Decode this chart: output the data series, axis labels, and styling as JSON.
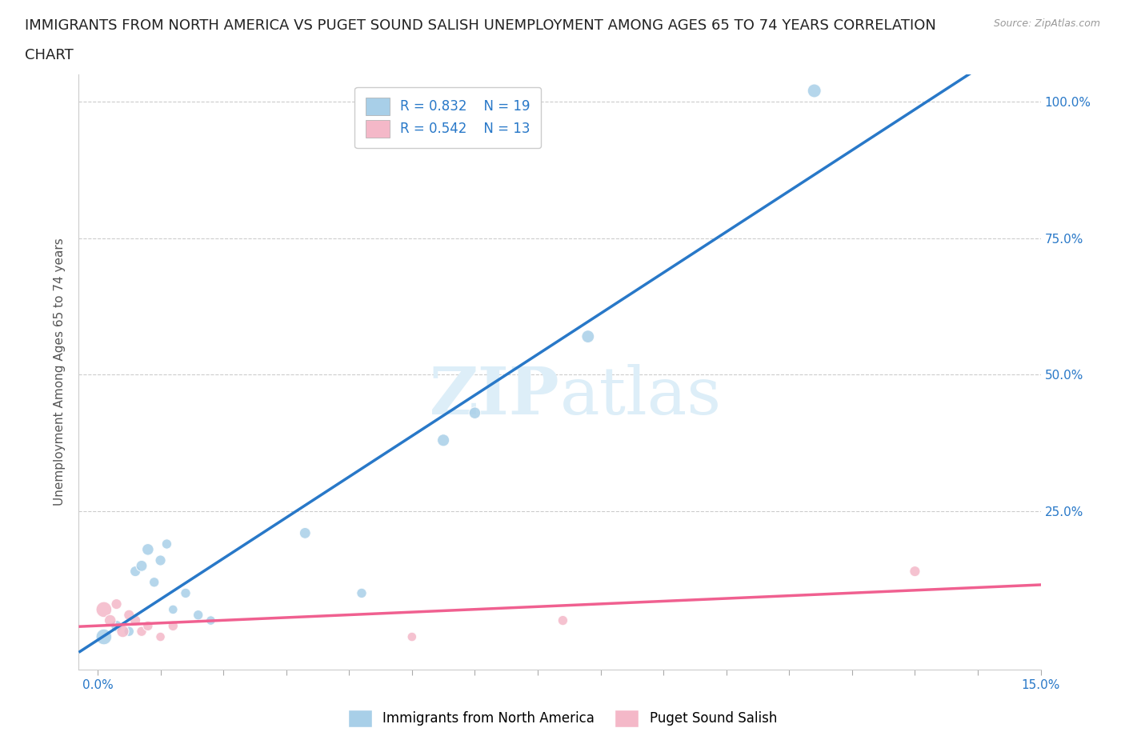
{
  "title_line1": "IMMIGRANTS FROM NORTH AMERICA VS PUGET SOUND SALISH UNEMPLOYMENT AMONG AGES 65 TO 74 YEARS CORRELATION",
  "title_line2": "CHART",
  "source": "Source: ZipAtlas.com",
  "ylabel": "Unemployment Among Ages 65 to 74 years",
  "xlabel_blue": "Immigrants from North America",
  "xlabel_pink": "Puget Sound Salish",
  "x_min": 0.0,
  "x_max": 0.15,
  "y_min": 0.0,
  "y_max": 1.05,
  "blue_R": 0.832,
  "blue_N": 19,
  "pink_R": 0.542,
  "pink_N": 13,
  "blue_color": "#a8cfe8",
  "pink_color": "#f4b8c8",
  "blue_line_color": "#2878c8",
  "pink_line_color": "#f06090",
  "watermark_color": "#ddeef8",
  "blue_scatter_x": [
    0.001,
    0.003,
    0.005,
    0.006,
    0.007,
    0.008,
    0.009,
    0.01,
    0.011,
    0.012,
    0.014,
    0.016,
    0.018,
    0.033,
    0.042,
    0.055,
    0.06,
    0.078,
    0.114
  ],
  "blue_scatter_y": [
    0.02,
    0.04,
    0.03,
    0.14,
    0.15,
    0.18,
    0.12,
    0.16,
    0.19,
    0.07,
    0.1,
    0.06,
    0.05,
    0.21,
    0.1,
    0.38,
    0.43,
    0.57,
    1.02
  ],
  "blue_scatter_sizes": [
    200,
    100,
    80,
    90,
    100,
    110,
    80,
    90,
    80,
    70,
    80,
    80,
    70,
    100,
    80,
    120,
    110,
    130,
    150
  ],
  "pink_scatter_x": [
    0.001,
    0.002,
    0.003,
    0.004,
    0.005,
    0.006,
    0.007,
    0.008,
    0.01,
    0.012,
    0.05,
    0.074,
    0.13
  ],
  "pink_scatter_y": [
    0.07,
    0.05,
    0.08,
    0.03,
    0.06,
    0.05,
    0.03,
    0.04,
    0.02,
    0.04,
    0.02,
    0.05,
    0.14
  ],
  "pink_scatter_sizes": [
    200,
    110,
    90,
    120,
    90,
    90,
    80,
    80,
    70,
    80,
    70,
    80,
    90
  ],
  "grid_color": "#cccccc",
  "background_color": "#ffffff",
  "title_fontsize": 13,
  "axis_label_fontsize": 11,
  "tick_fontsize": 11,
  "legend_fontsize": 12
}
